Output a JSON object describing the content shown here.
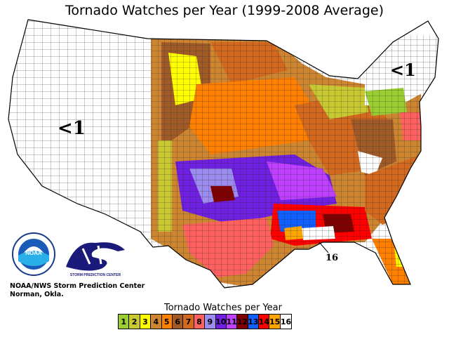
{
  "title": "Tornado Watches per Year (1999-2008 Average)",
  "map_labels": {
    "west": "<1",
    "northeast": "<1",
    "florida_panhandle": "16"
  },
  "agency": {
    "line1": "NOAA/NWS Storm Prediction Center",
    "line2": "Norman, Okla.",
    "noaa_logo_text": "NOAA",
    "spc_logo_text": "STORM PREDICTION CENTER"
  },
  "legend": {
    "title": "Tornado Watches per Year",
    "bins": [
      {
        "label": "1",
        "color": "#9acd32"
      },
      {
        "label": "2",
        "color": "#c8c832"
      },
      {
        "label": "3",
        "color": "#ffff00"
      },
      {
        "label": "4",
        "color": "#cd8532"
      },
      {
        "label": "5",
        "color": "#ff7f00"
      },
      {
        "label": "6",
        "color": "#a05a28"
      },
      {
        "label": "7",
        "color": "#d2691e"
      },
      {
        "label": "8",
        "color": "#ff6060"
      },
      {
        "label": "9",
        "color": "#9c8cf0"
      },
      {
        "label": "10",
        "color": "#7020e0"
      },
      {
        "label": "11",
        "color": "#c040ff"
      },
      {
        "label": "12",
        "color": "#800000"
      },
      {
        "label": "13",
        "color": "#1060ff"
      },
      {
        "label": "14",
        "color": "#ff0000"
      },
      {
        "label": "15",
        "color": "#ffa500"
      },
      {
        "label": "16",
        "color": "#ffffff"
      }
    ]
  }
}
